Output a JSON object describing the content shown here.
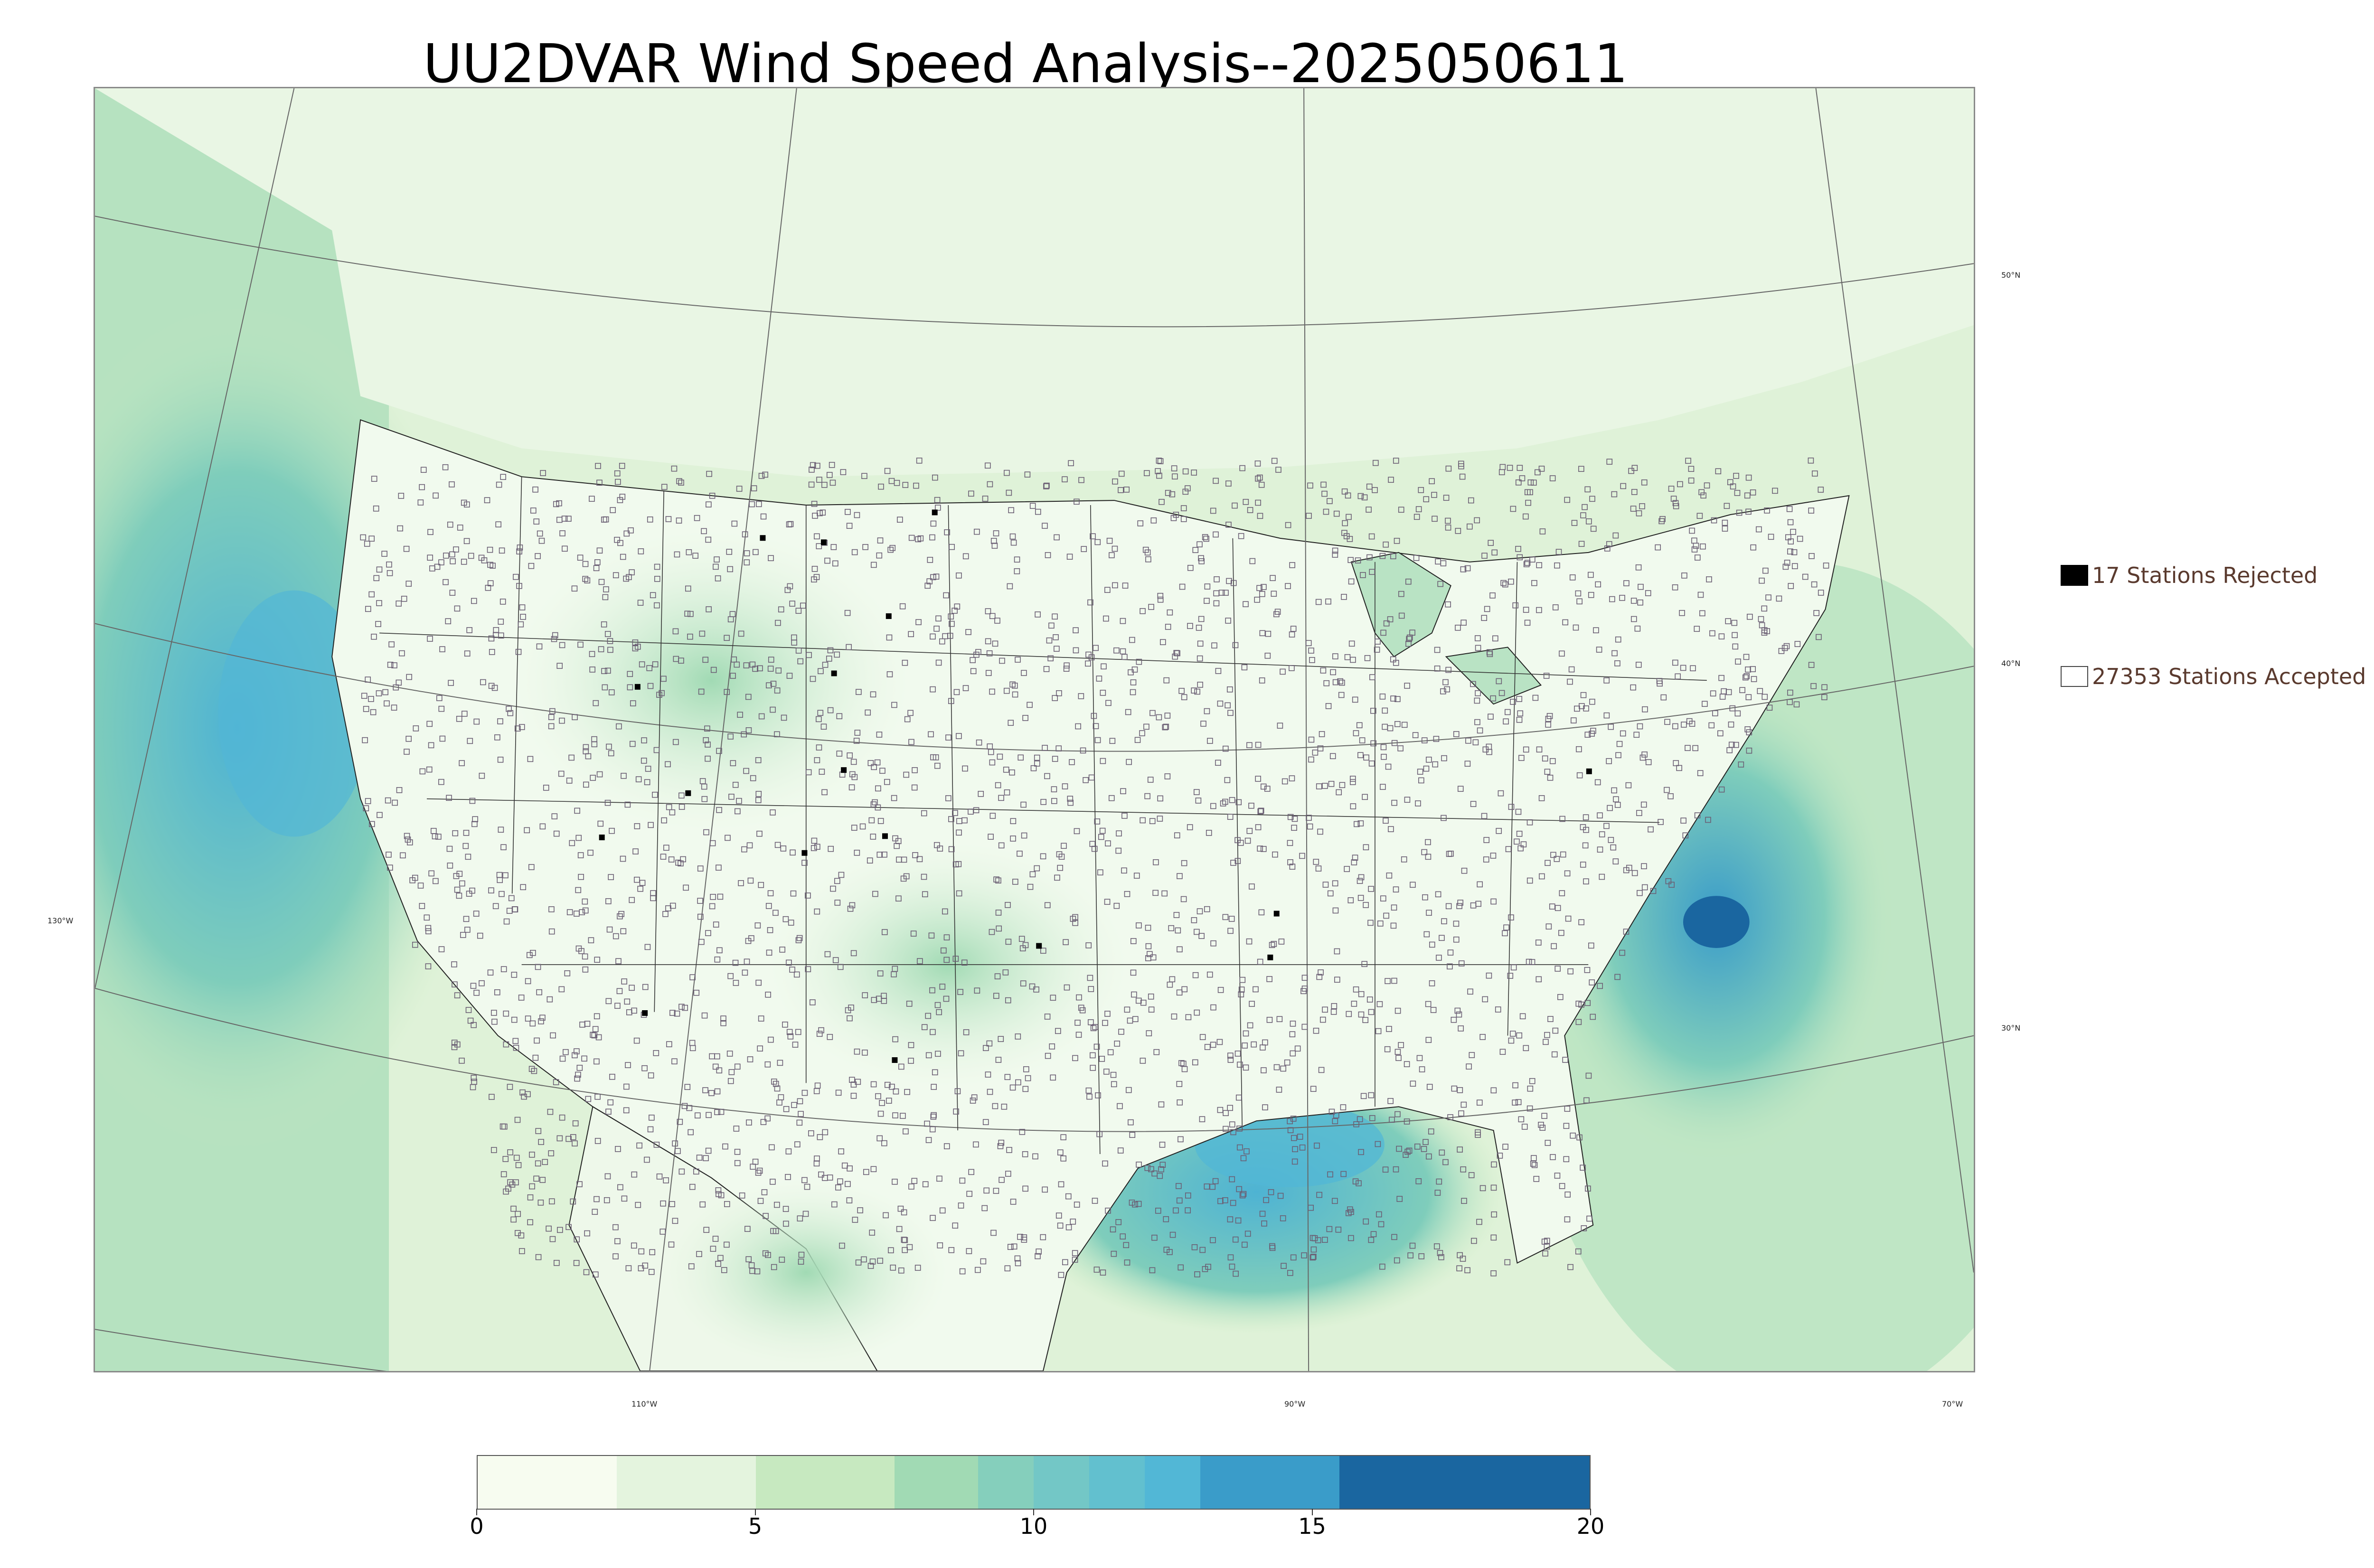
{
  "title": "UU2DVAR Wind Speed Analysis--2025050611",
  "map": {
    "lat_labels": [
      "50°N",
      "40°N",
      "30°N"
    ],
    "lon_labels": [
      "130°W",
      "110°W",
      "90°W",
      "70°W"
    ],
    "colors": {
      "land_low": "#f4fbf2",
      "mid": "#a8ddb5",
      "high": "#4eb3d3",
      "max": "#08589e",
      "borders": "#222222",
      "stations": "#6b5f74"
    }
  },
  "legend": {
    "rejected": {
      "label": "17 Stations Rejected",
      "color": "#000000"
    },
    "accepted": {
      "label": "27353 Stations Accepted",
      "color": "#ffffff"
    }
  },
  "colorbar": {
    "min": 0,
    "max": 20,
    "ticks": [
      "0",
      "5",
      "10",
      "15",
      "20"
    ],
    "bins": [
      {
        "from": 0,
        "to": 2.5,
        "color": "#f7fcf0"
      },
      {
        "from": 2.5,
        "to": 5,
        "color": "#e4f4de"
      },
      {
        "from": 5,
        "to": 7.5,
        "color": "#c7e9c0"
      },
      {
        "from": 7.5,
        "to": 9,
        "color": "#a1dab4"
      },
      {
        "from": 9,
        "to": 10,
        "color": "#85cfbc"
      },
      {
        "from": 10,
        "to": 11,
        "color": "#73c7c6"
      },
      {
        "from": 11,
        "to": 12,
        "color": "#62c0cf"
      },
      {
        "from": 12,
        "to": 13,
        "color": "#52b7d6"
      },
      {
        "from": 13,
        "to": 15.5,
        "color": "#3a9cc9"
      },
      {
        "from": 15.5,
        "to": 20,
        "color": "#1a66a0"
      }
    ]
  }
}
